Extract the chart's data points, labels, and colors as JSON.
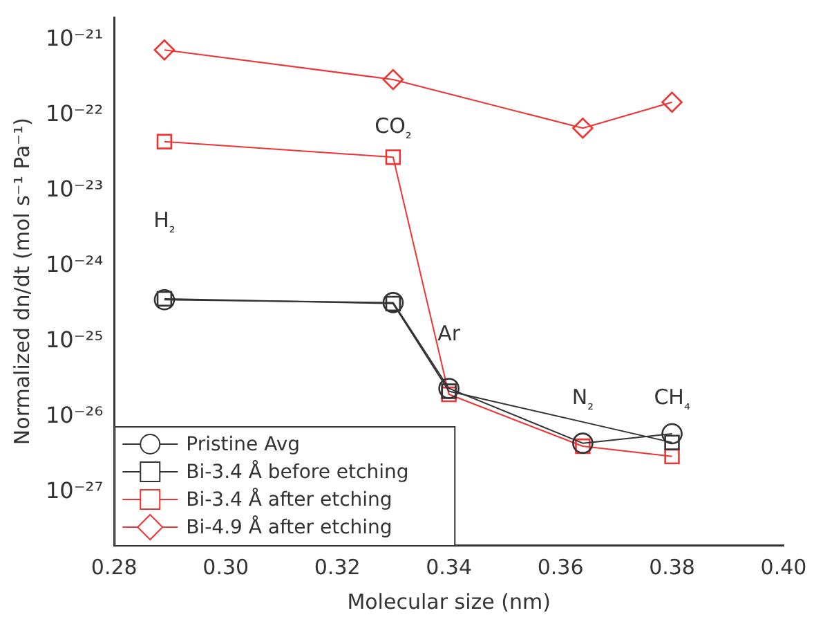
{
  "chart_data": {
    "type": "line",
    "xlabel": "Molecular size (nm)",
    "ylabel": "Normalized dn/dt (mol s⁻¹ Pa⁻¹)",
    "x": [
      0.289,
      0.33,
      0.34,
      0.364,
      0.38
    ],
    "series": [
      {
        "name": "Pristine Avg",
        "color": "#333333",
        "marker": "circle",
        "values": [
          3.6e-25,
          3.3e-25,
          2.4e-26,
          4.5e-27,
          6e-27
        ]
      },
      {
        "name": "Bi-3.4 Å before etching",
        "color": "#333333",
        "marker": "square",
        "values": [
          3.7e-25,
          3.2e-25,
          2.2e-26,
          null,
          4.6e-27
        ]
      },
      {
        "name": "Bi-3.4 Å after etching",
        "color": "#ee3333",
        "marker": "square",
        "values": [
          4.5e-23,
          2.8e-23,
          2e-26,
          4.1e-27,
          3e-27
        ]
      },
      {
        "name": "Bi-4.9 Å after etching",
        "color": "#ee3333",
        "marker": "diamond",
        "values": [
          7.4e-22,
          3e-22,
          null,
          6.8e-23,
          1.5e-22
        ]
      }
    ],
    "log": "y",
    "xlim": [
      0.28,
      0.4
    ],
    "ylim": [
      2e-28,
      2e-21
    ],
    "xticks": [
      {
        "value": 0.28,
        "label": "0.28"
      },
      {
        "value": 0.3,
        "label": "0.30"
      },
      {
        "value": 0.32,
        "label": "0.32"
      },
      {
        "value": 0.34,
        "label": "0.34"
      },
      {
        "value": 0.36,
        "label": "0.36"
      },
      {
        "value": 0.38,
        "label": "0.38"
      },
      {
        "value": 0.4,
        "label": "0.40"
      }
    ],
    "yticks": [
      {
        "value": 1e-27,
        "label": "10⁻²⁷"
      },
      {
        "value": 1e-26,
        "label": "10⁻²⁶"
      },
      {
        "value": 1e-25,
        "label": "10⁻²⁵"
      },
      {
        "value": 1e-24,
        "label": "10⁻²⁴"
      },
      {
        "value": 1e-23,
        "label": "10⁻²³"
      },
      {
        "value": 1e-22,
        "label": "10⁻²²"
      },
      {
        "value": 1e-21,
        "label": "10⁻²¹"
      }
    ],
    "annotations": [
      "H₂",
      "CO₂",
      "Ar",
      "N₂",
      "CH₄"
    ],
    "legend": "bottom left",
    "grid": false
  }
}
